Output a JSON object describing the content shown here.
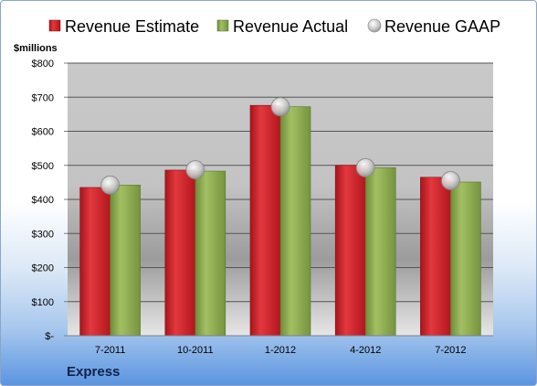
{
  "company": "Express",
  "chart_data": {
    "type": "bar",
    "unit_label": "$millions",
    "categories": [
      "7-2011",
      "10-2011",
      "1-2012",
      "4-2012",
      "7-2012"
    ],
    "series": [
      {
        "name": "Revenue Estimate",
        "kind": "bar",
        "color": "#d42128",
        "values": [
          435,
          486,
          676,
          500,
          465
        ]
      },
      {
        "name": "Revenue Actual",
        "kind": "bar",
        "color": "#8fae52",
        "values": [
          442,
          483,
          672,
          493,
          451
        ]
      },
      {
        "name": "Revenue GAAP",
        "kind": "marker",
        "color": "#c8c8c8",
        "values": [
          442,
          487,
          672,
          493,
          455
        ]
      }
    ],
    "ylim": [
      0,
      800
    ],
    "yticks": [
      0,
      100,
      200,
      300,
      400,
      500,
      600,
      700,
      800
    ],
    "ytick_labels": [
      "$-",
      "$100",
      "$200",
      "$300",
      "$400",
      "$500",
      "$600",
      "$700",
      "$800"
    ],
    "grid": true,
    "legend": "top"
  }
}
